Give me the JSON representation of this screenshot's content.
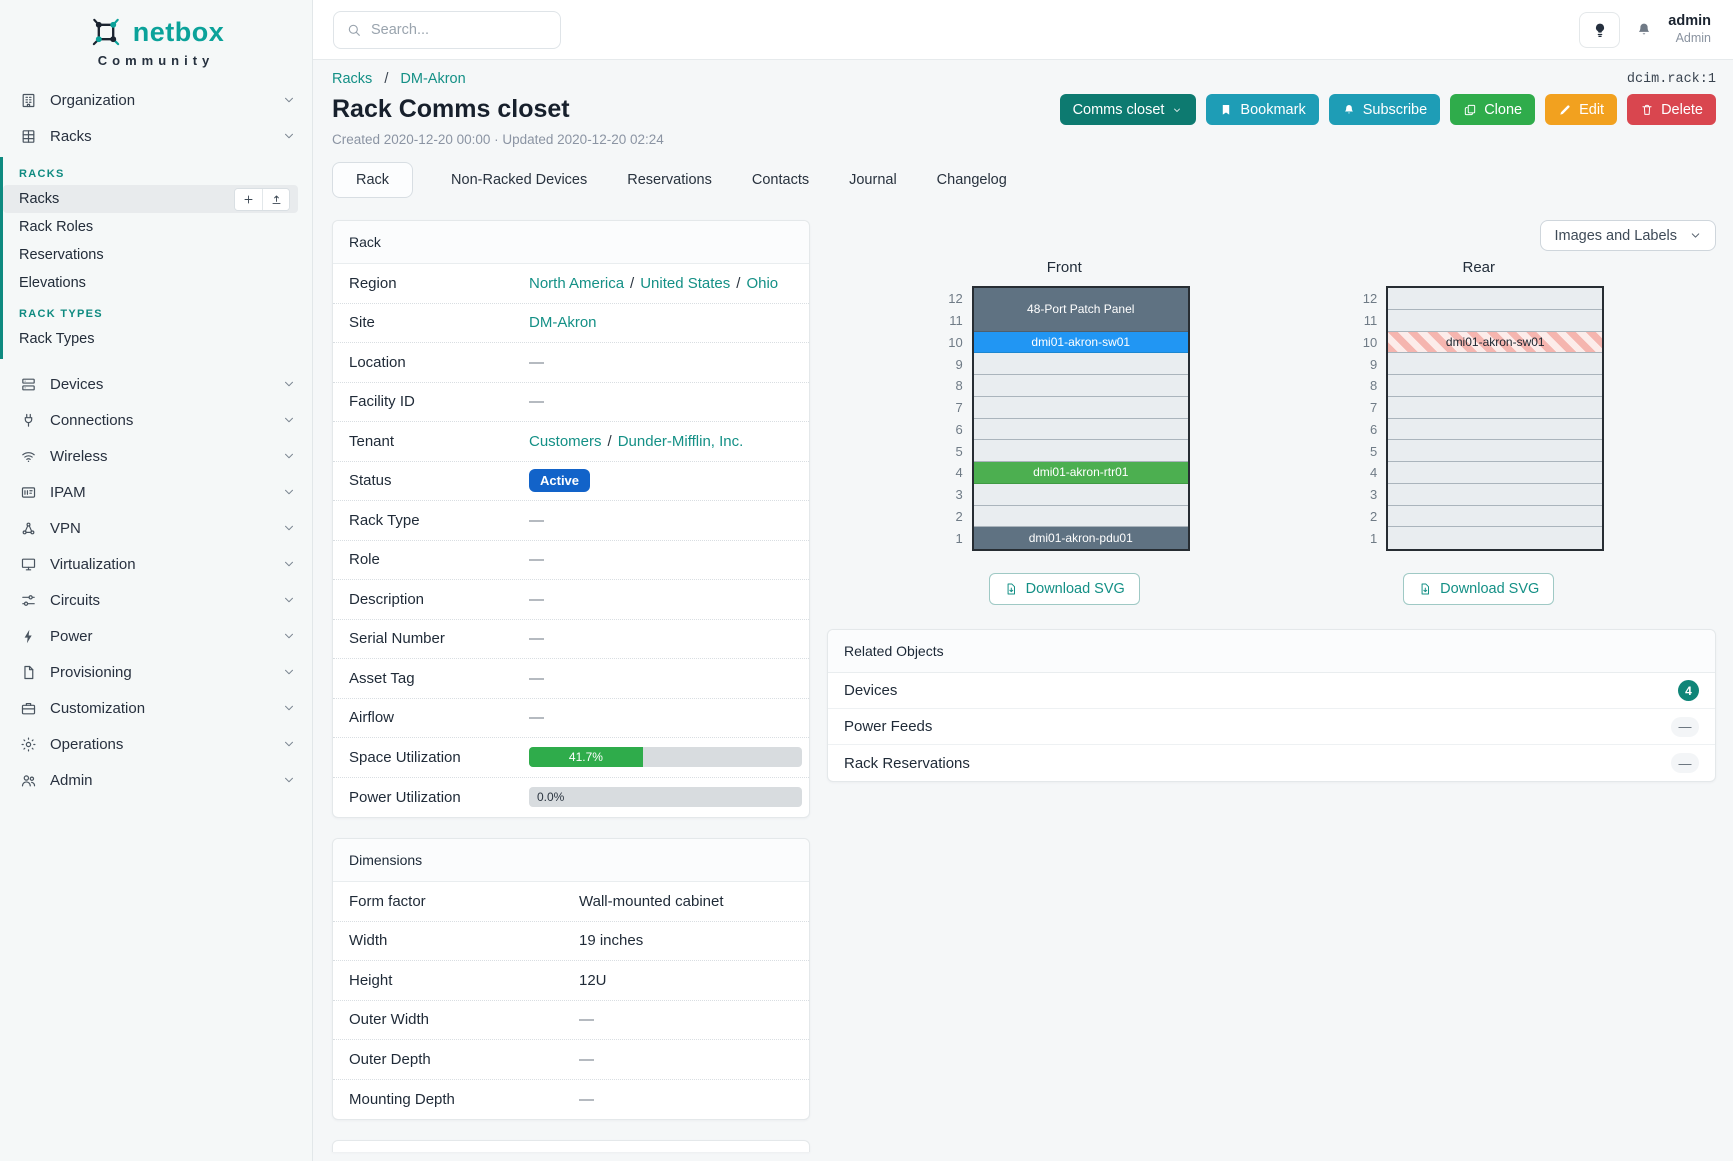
{
  "brand": {
    "name": "netbox",
    "subtitle": "Community"
  },
  "search": {
    "placeholder": "Search..."
  },
  "user": {
    "name": "admin",
    "role": "Admin"
  },
  "object_id": "dcim.rack:1",
  "breadcrumb": {
    "items": [
      "Racks",
      "DM-Akron"
    ]
  },
  "page": {
    "title": "Rack Comms closet",
    "meta": "Created 2020-12-20 00:00 · Updated 2020-12-20 02:24"
  },
  "actions": {
    "comms_closet": "Comms closet",
    "bookmark": "Bookmark",
    "subscribe": "Subscribe",
    "clone": "Clone",
    "edit": "Edit",
    "delete": "Delete"
  },
  "tabs": [
    {
      "label": "Rack",
      "active": true
    },
    {
      "label": "Non-Racked Devices",
      "active": false
    },
    {
      "label": "Reservations",
      "active": false
    },
    {
      "label": "Contacts",
      "active": false
    },
    {
      "label": "Journal",
      "active": false
    },
    {
      "label": "Changelog",
      "active": false
    }
  ],
  "sidebar": {
    "items": [
      {
        "type": "top",
        "label": "Organization",
        "icon": "building-icon"
      },
      {
        "type": "top",
        "label": "Racks",
        "icon": "rack-icon",
        "expanded": true
      },
      {
        "type": "heading",
        "label": "RACKS"
      },
      {
        "type": "sub",
        "label": "Racks",
        "active": true,
        "quick_add": true
      },
      {
        "type": "sub",
        "label": "Rack Roles"
      },
      {
        "type": "sub",
        "label": "Reservations"
      },
      {
        "type": "sub",
        "label": "Elevations"
      },
      {
        "type": "heading",
        "label": "RACK TYPES"
      },
      {
        "type": "sub",
        "label": "Rack Types"
      },
      {
        "type": "top",
        "label": "Devices",
        "icon": "server-icon"
      },
      {
        "type": "top",
        "label": "Connections",
        "icon": "plug-icon"
      },
      {
        "type": "top",
        "label": "Wireless",
        "icon": "wifi-icon"
      },
      {
        "type": "top",
        "label": "IPAM",
        "icon": "card-icon"
      },
      {
        "type": "top",
        "label": "VPN",
        "icon": "nodes-icon"
      },
      {
        "type": "top",
        "label": "Virtualization",
        "icon": "monitor-icon"
      },
      {
        "type": "top",
        "label": "Circuits",
        "icon": "sliders-icon"
      },
      {
        "type": "top",
        "label": "Power",
        "icon": "bolt-icon"
      },
      {
        "type": "top",
        "label": "Provisioning",
        "icon": "file-icon"
      },
      {
        "type": "top",
        "label": "Customization",
        "icon": "briefcase-icon"
      },
      {
        "type": "top",
        "label": "Operations",
        "icon": "gear-icon"
      },
      {
        "type": "top",
        "label": "Admin",
        "icon": "users-icon"
      }
    ]
  },
  "rack_panel": {
    "title": "Rack",
    "rows": [
      {
        "label": "Region",
        "type": "links",
        "parts": [
          "North America",
          "United States",
          "Ohio"
        ]
      },
      {
        "label": "Site",
        "type": "links",
        "parts": [
          "DM-Akron"
        ]
      },
      {
        "label": "Location",
        "type": "text",
        "value": "—"
      },
      {
        "label": "Facility ID",
        "type": "text",
        "value": "—"
      },
      {
        "label": "Tenant",
        "type": "links",
        "parts": [
          "Customers",
          "Dunder-Mifflin, Inc."
        ]
      },
      {
        "label": "Status",
        "type": "badge",
        "value": "Active"
      },
      {
        "label": "Rack Type",
        "type": "text",
        "value": "—"
      },
      {
        "label": "Role",
        "type": "text",
        "value": "—"
      },
      {
        "label": "Description",
        "type": "text",
        "value": "—"
      },
      {
        "label": "Serial Number",
        "type": "text",
        "value": "—"
      },
      {
        "label": "Asset Tag",
        "type": "text",
        "value": "—"
      },
      {
        "label": "Airflow",
        "type": "text",
        "value": "—"
      },
      {
        "label": "Space Utilization",
        "type": "progress",
        "value": "41.7%",
        "pct": 41.7
      },
      {
        "label": "Power Utilization",
        "type": "progress",
        "value": "0.0%",
        "pct": 0
      }
    ]
  },
  "dimensions_panel": {
    "title": "Dimensions",
    "rows": [
      {
        "label": "Form factor",
        "value": "Wall-mounted cabinet"
      },
      {
        "label": "Width",
        "value": "19 inches"
      },
      {
        "label": "Height",
        "value": "12U"
      },
      {
        "label": "Outer Width",
        "value": "—"
      },
      {
        "label": "Outer Depth",
        "value": "—"
      },
      {
        "label": "Mounting Depth",
        "value": "—"
      }
    ]
  },
  "elevations": {
    "view_toggle": "Images and Labels",
    "front": {
      "title": "Front",
      "download_label": "Download SVG",
      "top_unit": 12,
      "slots": [
        {
          "span": 2,
          "label": "48-Port Patch Panel",
          "style": "dark"
        },
        {
          "span": 1,
          "label": "dmi01-akron-sw01",
          "style": "blue"
        },
        {
          "span": 1,
          "label": "",
          "style": "empty"
        },
        {
          "span": 1,
          "label": "",
          "style": "empty"
        },
        {
          "span": 1,
          "label": "",
          "style": "empty"
        },
        {
          "span": 1,
          "label": "",
          "style": "empty"
        },
        {
          "span": 1,
          "label": "",
          "style": "empty"
        },
        {
          "span": 1,
          "label": "dmi01-akron-rtr01",
          "style": "green"
        },
        {
          "span": 1,
          "label": "",
          "style": "empty"
        },
        {
          "span": 1,
          "label": "",
          "style": "empty"
        },
        {
          "span": 1,
          "label": "dmi01-akron-pdu01",
          "style": "dark"
        }
      ]
    },
    "rear": {
      "title": "Rear",
      "download_label": "Download SVG",
      "top_unit": 12,
      "slots": [
        {
          "span": 1,
          "label": "",
          "style": "empty"
        },
        {
          "span": 1,
          "label": "",
          "style": "empty"
        },
        {
          "span": 1,
          "label": "dmi01-akron-sw01",
          "style": "reserved"
        },
        {
          "span": 1,
          "label": "",
          "style": "empty"
        },
        {
          "span": 1,
          "label": "",
          "style": "empty"
        },
        {
          "span": 1,
          "label": "",
          "style": "empty"
        },
        {
          "span": 1,
          "label": "",
          "style": "empty"
        },
        {
          "span": 1,
          "label": "",
          "style": "empty"
        },
        {
          "span": 1,
          "label": "",
          "style": "empty"
        },
        {
          "span": 1,
          "label": "",
          "style": "empty"
        },
        {
          "span": 1,
          "label": "",
          "style": "empty"
        },
        {
          "span": 1,
          "label": "",
          "style": "empty"
        }
      ]
    }
  },
  "related": {
    "title": "Related Objects",
    "rows": [
      {
        "label": "Devices",
        "badge": "4"
      },
      {
        "label": "Power Feeds",
        "dash": "—"
      },
      {
        "label": "Rack Reservations",
        "dash": "—"
      }
    ]
  },
  "colors": {
    "brand": "#0ba29a",
    "section": "#0e8a80",
    "link": "#149086",
    "active_badge": "#1263c9",
    "progress": "#2fac4b",
    "count_badge": "#0f8578",
    "btn_primary": "#0d7a70",
    "btn_info": "#1e9db6",
    "btn_clone": "#2fac4b",
    "btn_edit": "#f2a11f",
    "btn_delete": "#d9464f",
    "slot_dark": "#5f7282",
    "slot_blue": "#2196f3",
    "slot_green": "#4caf50"
  }
}
